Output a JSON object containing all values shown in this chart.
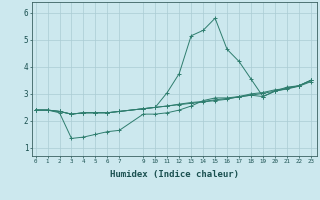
{
  "bg_color": "#cce8ee",
  "grid_color": "#aaccd4",
  "line_color": "#2e7d6e",
  "xlabel": "Humidex (Indice chaleur)",
  "xlabel_fontsize": 6.5,
  "ytick_labels": [
    "1",
    "2",
    "3",
    "4",
    "5",
    "6"
  ],
  "ytick_vals": [
    1,
    2,
    3,
    4,
    5,
    6
  ],
  "xtick_vals": [
    0,
    1,
    2,
    3,
    4,
    5,
    6,
    7,
    9,
    10,
    11,
    12,
    13,
    14,
    15,
    16,
    17,
    18,
    19,
    20,
    21,
    22,
    23
  ],
  "xtick_labels": [
    "0",
    "1",
    "2",
    "3",
    "4",
    "5",
    "6",
    "7",
    "9",
    "10",
    "11",
    "12",
    "13",
    "14",
    "15",
    "16",
    "17",
    "18",
    "19",
    "20",
    "21",
    "22",
    "23"
  ],
  "xlim": [
    -0.3,
    23.5
  ],
  "ylim": [
    0.7,
    6.4
  ],
  "series1_x": [
    0,
    1,
    2,
    3,
    4,
    5,
    6,
    7,
    9,
    10,
    11,
    12,
    13,
    14,
    15,
    16,
    17,
    18,
    19,
    20,
    21,
    22,
    23
  ],
  "series1_y": [
    2.4,
    2.4,
    2.35,
    2.25,
    2.3,
    2.3,
    2.3,
    2.35,
    2.45,
    2.5,
    3.05,
    3.75,
    5.15,
    5.35,
    5.8,
    4.65,
    4.2,
    3.55,
    2.9,
    3.1,
    3.25,
    3.3,
    3.5
  ],
  "series2_x": [
    0,
    1,
    2,
    3,
    4,
    5,
    6,
    7,
    9,
    10,
    11,
    12,
    13,
    14,
    15,
    16,
    17,
    18,
    19,
    20,
    21,
    22,
    23
  ],
  "series2_y": [
    2.4,
    2.4,
    2.35,
    2.25,
    2.3,
    2.3,
    2.3,
    2.35,
    2.45,
    2.5,
    2.55,
    2.6,
    2.65,
    2.7,
    2.75,
    2.8,
    2.9,
    3.0,
    3.05,
    3.15,
    3.2,
    3.3,
    3.5
  ],
  "series3_x": [
    0,
    1,
    2,
    3,
    4,
    5,
    6,
    7,
    9,
    10,
    11,
    12,
    13,
    14,
    15,
    16,
    17,
    18,
    19,
    20,
    21,
    22,
    23
  ],
  "series3_y": [
    2.4,
    2.4,
    2.3,
    1.35,
    1.4,
    1.5,
    1.6,
    1.65,
    2.25,
    2.25,
    2.3,
    2.4,
    2.55,
    2.75,
    2.85,
    2.85,
    2.9,
    2.95,
    2.9,
    3.1,
    3.2,
    3.3,
    3.5
  ],
  "series4_x": [
    0,
    1,
    2,
    3,
    4,
    5,
    6,
    7,
    9,
    10,
    11,
    12,
    13,
    14,
    15,
    16,
    17,
    18,
    19,
    20,
    21,
    22,
    23
  ],
  "series4_y": [
    2.4,
    2.4,
    2.35,
    2.25,
    2.3,
    2.3,
    2.3,
    2.35,
    2.45,
    2.5,
    2.55,
    2.62,
    2.68,
    2.72,
    2.78,
    2.83,
    2.88,
    2.95,
    3.02,
    3.1,
    3.18,
    3.28,
    3.45
  ]
}
